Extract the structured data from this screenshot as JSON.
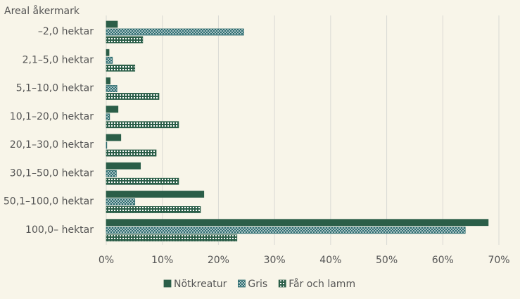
{
  "chart_data": {
    "type": "bar",
    "orientation": "horizontal",
    "y_axis_title": "Areal åkermark",
    "categories": [
      "–2,0 hektar",
      "2,1–5,0 hektar",
      "5,1–10,0 hektar",
      "10,1–20,0 hektar",
      "20,1–30,0 hektar",
      "30,1–50,0 hektar",
      "50,1–100,0 hektar",
      "100,0– hektar"
    ],
    "series": [
      {
        "name": "Nötkreatur",
        "color": "#2b5e48",
        "pattern": "solid",
        "values": [
          2.0,
          0.5,
          0.7,
          2.1,
          2.6,
          6.1,
          17.4,
          68.1
        ]
      },
      {
        "name": "Gris",
        "color": "#2b6b6e",
        "pattern": "crosshatch",
        "values": [
          24.5,
          1.1,
          1.9,
          0.6,
          0.1,
          1.8,
          5.1,
          64.0
        ]
      },
      {
        "name": "Får och lamm",
        "color": "#2b5e48",
        "pattern": "stripes",
        "values": [
          6.5,
          5.1,
          9.4,
          12.9,
          8.9,
          12.9,
          16.8,
          23.3
        ]
      }
    ],
    "xlim": [
      0,
      70
    ],
    "xticks": [
      {
        "value": 0,
        "label": "0%"
      },
      {
        "value": 10,
        "label": "10%"
      },
      {
        "value": 20,
        "label": "20%"
      },
      {
        "value": 30,
        "label": "30%"
      },
      {
        "value": 40,
        "label": "40%"
      },
      {
        "value": 50,
        "label": "50%"
      },
      {
        "value": 60,
        "label": "60%"
      },
      {
        "value": 70,
        "label": "70%"
      }
    ],
    "grid": true,
    "legend": "bottom"
  }
}
